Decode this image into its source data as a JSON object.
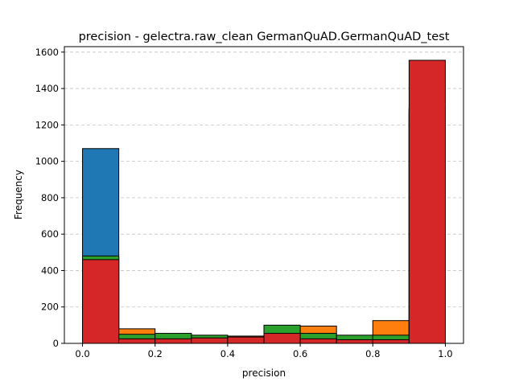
{
  "chart_data": {
    "type": "bar",
    "title": "precision - gelectra.raw_clean GermanQuAD.GermanQuAD_test",
    "xlabel": "precision",
    "ylabel": "Frequency",
    "xlim": [
      -0.05,
      1.05
    ],
    "ylim": [
      0,
      1630
    ],
    "xticks": [
      0.0,
      0.2,
      0.4,
      0.6,
      0.8,
      1.0
    ],
    "xtick_labels": [
      "0.0",
      "0.2",
      "0.4",
      "0.6",
      "0.8",
      "1.0"
    ],
    "yticks": [
      0,
      200,
      400,
      600,
      800,
      1000,
      1200,
      1400,
      1600
    ],
    "ytick_labels": [
      "0",
      "200",
      "400",
      "600",
      "800",
      "1000",
      "1200",
      "1400",
      "1600"
    ],
    "grid": "y-dashed",
    "bin_edges": [
      0.0,
      0.1,
      0.2,
      0.3,
      0.4,
      0.5,
      0.6,
      0.7,
      0.8,
      0.9,
      1.0
    ],
    "series": [
      {
        "color": "#1f77b4",
        "values": [
          1070,
          20,
          15,
          10,
          5,
          5,
          10,
          10,
          15,
          1290
        ]
      },
      {
        "color": "#ff7f0e",
        "values": [
          470,
          80,
          50,
          40,
          40,
          95,
          95,
          30,
          125,
          1270
        ]
      },
      {
        "color": "#2ca02c",
        "values": [
          480,
          50,
          55,
          45,
          30,
          100,
          55,
          45,
          45,
          1290
        ]
      },
      {
        "color": "#d62728",
        "values": [
          460,
          25,
          25,
          30,
          35,
          55,
          25,
          20,
          20,
          1555
        ]
      }
    ]
  }
}
